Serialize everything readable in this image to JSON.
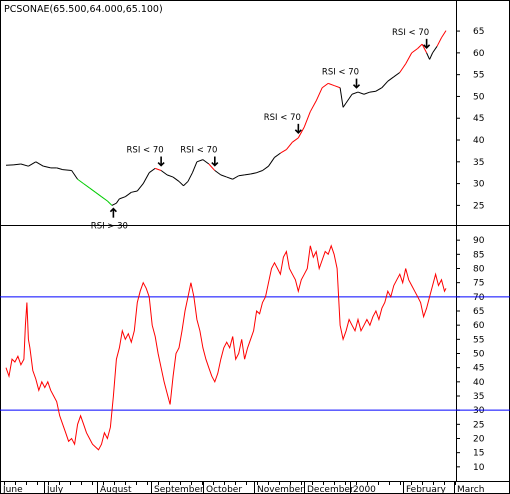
{
  "title": "PCSONAE(65.500,64.000,65.100)",
  "colors": {
    "background": "#ffffff",
    "frame": "#000000",
    "price_neutral": "#000000",
    "price_up": "#ff0000",
    "price_down": "#00cc00",
    "rsi_line": "#ff0000",
    "rsi_levels": "#0000ff",
    "arrow": "#000000"
  },
  "chart_data": [
    {
      "type": "line",
      "panel": "price",
      "title": "PCSONAE(65.500,64.000,65.100)",
      "xlabel": "",
      "ylabel": "",
      "x_unit": "trading day index (0 = first day shown, early June 1999)",
      "ylim": [
        20.5,
        68
      ],
      "yticks": [
        "25",
        "30",
        "35",
        "40",
        "45",
        "50",
        "55",
        "60",
        "65"
      ],
      "grid": false,
      "series": [
        {
          "color": "#000000",
          "points": [
            [
              0,
              34.2
            ],
            [
              5,
              34.3
            ],
            [
              10,
              34.5
            ],
            [
              15,
              34.0
            ],
            [
              20,
              35.0
            ],
            [
              25,
              34.0
            ],
            [
              30,
              33.6
            ],
            [
              34,
              33.6
            ],
            [
              38,
              33.2
            ],
            [
              44,
              33.0
            ],
            [
              48,
              31.0
            ],
            [
              52,
              30.0
            ],
            [
              56,
              29.0
            ],
            [
              60,
              28.0
            ],
            [
              64,
              27.0
            ],
            [
              68,
              26.0
            ],
            [
              71,
              25.0
            ],
            [
              74,
              25.5
            ],
            [
              76,
              26.5
            ],
            [
              80,
              27.0
            ],
            [
              84,
              28.0
            ],
            [
              88,
              28.3
            ],
            [
              92,
              30.0
            ],
            [
              96,
              32.5
            ],
            [
              100,
              33.5
            ],
            [
              104,
              33.0
            ],
            [
              108,
              32.0
            ],
            [
              112,
              31.5
            ],
            [
              116,
              30.5
            ],
            [
              119,
              29.5
            ],
            [
              122,
              30.5
            ],
            [
              125,
              32.5
            ],
            [
              128,
              35.0
            ],
            [
              132,
              35.5
            ],
            [
              136,
              34.5
            ],
            [
              140,
              33.0
            ],
            [
              144,
              32.0
            ],
            [
              148,
              31.5
            ],
            [
              152,
              31.0
            ],
            [
              156,
              31.8
            ],
            [
              160,
              32.0
            ],
            [
              164,
              32.2
            ],
            [
              168,
              32.5
            ],
            [
              172,
              33.0
            ],
            [
              176,
              34.0
            ],
            [
              180,
              36.0
            ],
            [
              184,
              37.0
            ],
            [
              188,
              37.8
            ],
            [
              192,
              39.5
            ],
            [
              196,
              40.5
            ],
            [
              200,
              43.0
            ],
            [
              204,
              46.5
            ],
            [
              208,
              49.0
            ],
            [
              212,
              52.0
            ],
            [
              216,
              53.0
            ],
            [
              220,
              52.5
            ],
            [
              224,
              52.0
            ],
            [
              226,
              47.5
            ],
            [
              228,
              48.5
            ],
            [
              232,
              50.5
            ],
            [
              236,
              51.0
            ],
            [
              240,
              50.5
            ],
            [
              244,
              51.0
            ],
            [
              248,
              51.2
            ],
            [
              252,
              52.0
            ],
            [
              256,
              53.5
            ],
            [
              260,
              54.5
            ],
            [
              264,
              55.5
            ],
            [
              268,
              57.5
            ],
            [
              272,
              60.0
            ],
            [
              276,
              61.0
            ],
            [
              279,
              62.0
            ],
            [
              282,
              60.0
            ],
            [
              284,
              58.5
            ],
            [
              286,
              60.0
            ],
            [
              289,
              61.5
            ],
            [
              292,
              63.5
            ],
            [
              295,
              65.1
            ]
          ]
        }
      ],
      "annotations": [
        {
          "text": "RSI > 30",
          "x": 72,
          "direction": "up"
        },
        {
          "text": "RSI < 70",
          "x": 104,
          "direction": "down"
        },
        {
          "text": "RSI < 70",
          "x": 140,
          "direction": "down"
        },
        {
          "text": "RSI < 70",
          "x": 196,
          "direction": "down"
        },
        {
          "text": "RSI < 70",
          "x": 235,
          "direction": "down"
        },
        {
          "text": "RSI < 70",
          "x": 282,
          "direction": "down"
        }
      ]
    },
    {
      "type": "line",
      "panel": "rsi",
      "title": "",
      "xlabel": "",
      "ylabel": "",
      "x_unit": "trading day index (0 = first day shown, early June 1999)",
      "ylim": [
        5,
        95
      ],
      "yticks": [
        "10",
        "15",
        "20",
        "25",
        "30",
        "35",
        "40",
        "45",
        "50",
        "55",
        "60",
        "65",
        "70",
        "75",
        "80",
        "85",
        "90"
      ],
      "levels": [
        30,
        70
      ],
      "grid": false,
      "series": [
        {
          "color": "#ff0000",
          "points": [
            [
              0,
              45
            ],
            [
              2,
              42
            ],
            [
              4,
              48
            ],
            [
              6,
              47
            ],
            [
              8,
              49
            ],
            [
              10,
              46
            ],
            [
              12,
              48
            ],
            [
              13,
              60
            ],
            [
              14,
              68
            ],
            [
              15,
              55
            ],
            [
              16,
              52
            ],
            [
              18,
              44
            ],
            [
              20,
              41
            ],
            [
              22,
              37
            ],
            [
              24,
              40
            ],
            [
              26,
              38
            ],
            [
              28,
              40
            ],
            [
              30,
              37
            ],
            [
              32,
              35
            ],
            [
              34,
              33
            ],
            [
              36,
              28
            ],
            [
              38,
              25
            ],
            [
              40,
              22
            ],
            [
              42,
              19
            ],
            [
              44,
              20
            ],
            [
              46,
              18
            ],
            [
              48,
              25
            ],
            [
              50,
              28
            ],
            [
              52,
              25
            ],
            [
              54,
              22
            ],
            [
              56,
              20
            ],
            [
              58,
              18
            ],
            [
              60,
              17
            ],
            [
              62,
              16
            ],
            [
              64,
              18
            ],
            [
              66,
              22
            ],
            [
              68,
              20
            ],
            [
              70,
              24
            ],
            [
              72,
              35
            ],
            [
              74,
              48
            ],
            [
              76,
              52
            ],
            [
              78,
              58
            ],
            [
              80,
              55
            ],
            [
              82,
              57
            ],
            [
              84,
              54
            ],
            [
              86,
              58
            ],
            [
              88,
              68
            ],
            [
              90,
              72
            ],
            [
              92,
              75
            ],
            [
              94,
              73
            ],
            [
              96,
              70
            ],
            [
              98,
              60
            ],
            [
              100,
              56
            ],
            [
              102,
              50
            ],
            [
              104,
              45
            ],
            [
              106,
              40
            ],
            [
              108,
              36
            ],
            [
              110,
              32
            ],
            [
              112,
              42
            ],
            [
              114,
              50
            ],
            [
              116,
              52
            ],
            [
              118,
              58
            ],
            [
              120,
              65
            ],
            [
              122,
              70
            ],
            [
              124,
              75
            ],
            [
              126,
              70
            ],
            [
              128,
              62
            ],
            [
              130,
              58
            ],
            [
              132,
              52
            ],
            [
              134,
              48
            ],
            [
              136,
              45
            ],
            [
              138,
              42
            ],
            [
              140,
              40
            ],
            [
              142,
              43
            ],
            [
              144,
              48
            ],
            [
              146,
              52
            ],
            [
              148,
              54
            ],
            [
              150,
              52
            ],
            [
              152,
              56
            ],
            [
              154,
              48
            ],
            [
              156,
              50
            ],
            [
              158,
              55
            ],
            [
              160,
              48
            ],
            [
              162,
              52
            ],
            [
              164,
              55
            ],
            [
              166,
              58
            ],
            [
              168,
              65
            ],
            [
              170,
              64
            ],
            [
              172,
              68
            ],
            [
              174,
              70
            ],
            [
              176,
              75
            ],
            [
              178,
              80
            ],
            [
              180,
              82
            ],
            [
              182,
              80
            ],
            [
              184,
              78
            ],
            [
              186,
              84
            ],
            [
              188,
              86
            ],
            [
              190,
              80
            ],
            [
              192,
              78
            ],
            [
              194,
              76
            ],
            [
              196,
              72
            ],
            [
              198,
              76
            ],
            [
              200,
              78
            ],
            [
              202,
              80
            ],
            [
              204,
              88
            ],
            [
              206,
              84
            ],
            [
              208,
              86
            ],
            [
              210,
              80
            ],
            [
              212,
              83
            ],
            [
              214,
              86
            ],
            [
              216,
              85
            ],
            [
              218,
              88
            ],
            [
              220,
              85
            ],
            [
              222,
              80
            ],
            [
              224,
              60
            ],
            [
              226,
              55
            ],
            [
              228,
              58
            ],
            [
              230,
              62
            ],
            [
              232,
              60
            ],
            [
              234,
              58
            ],
            [
              236,
              62
            ],
            [
              238,
              58
            ],
            [
              240,
              60
            ],
            [
              242,
              62
            ],
            [
              244,
              60
            ],
            [
              246,
              63
            ],
            [
              248,
              65
            ],
            [
              250,
              62
            ],
            [
              252,
              66
            ],
            [
              254,
              68
            ],
            [
              256,
              72
            ],
            [
              258,
              70
            ],
            [
              260,
              74
            ],
            [
              262,
              76
            ],
            [
              264,
              78
            ],
            [
              266,
              75
            ],
            [
              268,
              80
            ],
            [
              270,
              76
            ],
            [
              272,
              74
            ],
            [
              274,
              72
            ],
            [
              276,
              70
            ],
            [
              278,
              68
            ],
            [
              280,
              63
            ],
            [
              282,
              66
            ],
            [
              284,
              70
            ],
            [
              286,
              74
            ],
            [
              288,
              78
            ],
            [
              290,
              74
            ],
            [
              292,
              76
            ],
            [
              294,
              72
            ],
            [
              295,
              73
            ]
          ]
        }
      ],
      "x_categories": [
        "June",
        "July",
        "August",
        "September",
        "October",
        "November",
        "December",
        "2000",
        "February",
        "March"
      ]
    }
  ]
}
